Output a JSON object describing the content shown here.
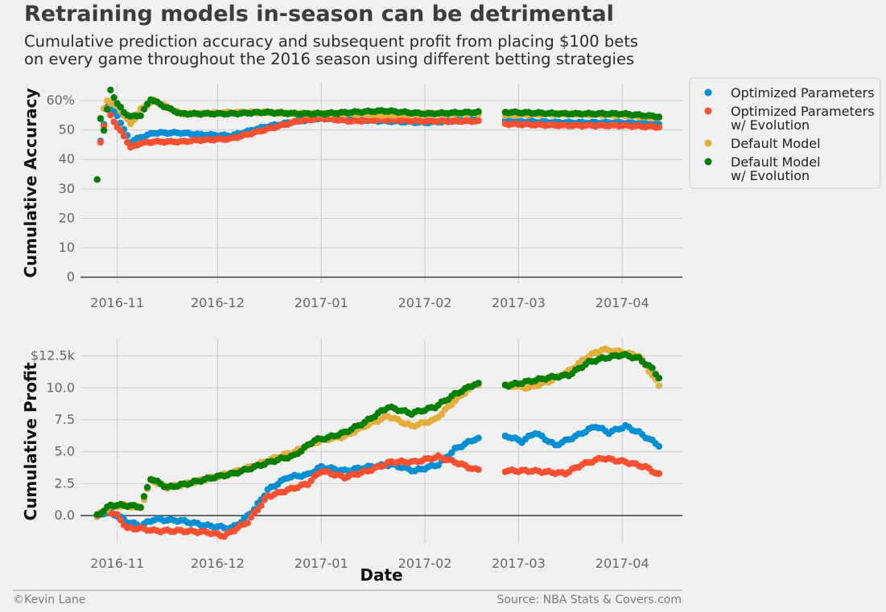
{
  "title": "Retraining models in-season can be detrimental",
  "subtitle": [
    "Cumulative prediction accuracy and subsequent profit from placing $100 bets",
    "on every game throughout the 2016 season using different betting strategies"
  ],
  "footer": {
    "credit": "©Kevin Lane",
    "source": "Source: NBA Stats & Covers.com"
  },
  "colors": {
    "optimized": "#008fd5",
    "optimized_evo": "#fc4f30",
    "default": "#e5ae38",
    "default_evo": "#008000"
  },
  "chart_data": [
    {
      "type": "scatter",
      "ylabel": "Cumulative Accuracy",
      "xlabel": "",
      "x_ticks": [
        "2016-11",
        "2016-12",
        "2017-01",
        "2017-02",
        "2017-03",
        "2017-04"
      ],
      "x_range": [
        "2016-10-21",
        "2017-04-19"
      ],
      "y_ticks": [
        "0",
        "10",
        "20",
        "30",
        "40",
        "50",
        "60%"
      ],
      "ylim": [
        -2,
        66
      ],
      "legend_position": "outside-right",
      "gap": [
        "2017-02-17",
        "2017-02-25"
      ],
      "series": [
        {
          "name": "Optimized Parameters",
          "color_key": "optimized",
          "anchors": [
            [
              "2016-10-27",
              46
            ],
            [
              "2016-10-29",
              58
            ],
            [
              "2016-11-01",
              55
            ],
            [
              "2016-11-03",
              50
            ],
            [
              "2016-11-05",
              46
            ],
            [
              "2016-11-08",
              47.5
            ],
            [
              "2016-11-12",
              49
            ],
            [
              "2016-11-20",
              49
            ],
            [
              "2016-11-25",
              48.5
            ],
            [
              "2016-12-05",
              48
            ],
            [
              "2016-12-15",
              51
            ],
            [
              "2016-12-25",
              53
            ],
            [
              "2017-01-01",
              54
            ],
            [
              "2017-01-10",
              53.5
            ],
            [
              "2017-01-20",
              53
            ],
            [
              "2017-02-01",
              52.5
            ],
            [
              "2017-02-16",
              53.5
            ],
            [
              "2017-02-26",
              53
            ],
            [
              "2017-03-15",
              52.5
            ],
            [
              "2017-04-01",
              52.5
            ],
            [
              "2017-04-12",
              52
            ]
          ]
        },
        {
          "name": "Optimized Parameters\nw/ Evolution",
          "color_key": "optimized_evo",
          "anchors": [
            [
              "2016-10-27",
              46
            ],
            [
              "2016-10-29",
              57
            ],
            [
              "2016-11-01",
              51
            ],
            [
              "2016-11-03",
              48
            ],
            [
              "2016-11-05",
              44
            ],
            [
              "2016-11-08",
              45.5
            ],
            [
              "2016-11-12",
              46
            ],
            [
              "2016-11-20",
              46
            ],
            [
              "2016-11-25",
              46.5
            ],
            [
              "2016-12-05",
              47
            ],
            [
              "2016-12-15",
              50
            ],
            [
              "2016-12-25",
              53
            ],
            [
              "2017-01-01",
              54
            ],
            [
              "2017-01-10",
              53
            ],
            [
              "2017-01-20",
              53.5
            ],
            [
              "2017-02-01",
              53
            ],
            [
              "2017-02-16",
              53
            ],
            [
              "2017-02-26",
              52
            ],
            [
              "2017-03-15",
              51.5
            ],
            [
              "2017-04-01",
              51.5
            ],
            [
              "2017-04-12",
              51
            ]
          ]
        },
        {
          "name": "Default Model",
          "color_key": "default",
          "anchors": [
            [
              "2016-10-27",
              54
            ],
            [
              "2016-10-29",
              60
            ],
            [
              "2016-11-01",
              58
            ],
            [
              "2016-11-03",
              55
            ],
            [
              "2016-11-05",
              52
            ],
            [
              "2016-11-08",
              57
            ],
            [
              "2016-11-12",
              60
            ],
            [
              "2016-11-20",
              55.5
            ],
            [
              "2016-11-25",
              55.5
            ],
            [
              "2016-12-05",
              56
            ],
            [
              "2016-12-15",
              56
            ],
            [
              "2016-12-25",
              55.5
            ],
            [
              "2017-01-01",
              55.5
            ],
            [
              "2017-01-10",
              55.5
            ],
            [
              "2017-01-20",
              55
            ],
            [
              "2017-02-01",
              55.5
            ],
            [
              "2017-02-16",
              55.5
            ],
            [
              "2017-02-26",
              55
            ],
            [
              "2017-03-15",
              55.5
            ],
            [
              "2017-04-01",
              55
            ],
            [
              "2017-04-12",
              54
            ]
          ]
        },
        {
          "name": "Default Model\nw/ Evolution",
          "color_key": "default_evo",
          "anchors": [
            [
              "2016-10-26",
              33
            ],
            [
              "2016-10-27",
              54
            ],
            [
              "2016-10-28",
              50
            ],
            [
              "2016-10-30",
              63.5
            ],
            [
              "2016-11-01",
              59
            ],
            [
              "2016-11-03",
              56
            ],
            [
              "2016-11-05",
              54.5
            ],
            [
              "2016-11-08",
              55
            ],
            [
              "2016-11-11",
              60.5
            ],
            [
              "2016-11-15",
              58
            ],
            [
              "2016-11-20",
              55.5
            ],
            [
              "2016-12-05",
              55.5
            ],
            [
              "2016-12-15",
              56
            ],
            [
              "2016-12-25",
              55.5
            ],
            [
              "2017-01-01",
              55.5
            ],
            [
              "2017-01-10",
              56
            ],
            [
              "2017-01-20",
              56.5
            ],
            [
              "2017-02-01",
              55.5
            ],
            [
              "2017-02-16",
              56
            ],
            [
              "2017-02-26",
              56
            ],
            [
              "2017-03-15",
              55.5
            ],
            [
              "2017-04-01",
              55.5
            ],
            [
              "2017-04-12",
              54.5
            ]
          ]
        }
      ]
    },
    {
      "type": "scatter",
      "ylabel": "Cumulative Profit",
      "xlabel": "Date",
      "x_ticks": [
        "2016-11",
        "2016-12",
        "2017-01",
        "2017-02",
        "2017-03",
        "2017-04"
      ],
      "x_range": [
        "2016-10-21",
        "2017-04-19"
      ],
      "y_ticks": [
        "0.0",
        "2.5",
        "5.0",
        "7.5",
        "10.0",
        "$12.5k"
      ],
      "ylim": [
        -2.2,
        13.8
      ],
      "gap": [
        "2017-02-17",
        "2017-02-25"
      ],
      "series": [
        {
          "name": "Optimized Parameters",
          "color_key": "optimized",
          "anchors": [
            [
              "2016-10-26",
              0
            ],
            [
              "2016-10-29",
              0.3
            ],
            [
              "2016-11-01",
              0
            ],
            [
              "2016-11-04",
              -0.5
            ],
            [
              "2016-11-08",
              -0.8
            ],
            [
              "2016-11-12",
              -0.3
            ],
            [
              "2016-11-20",
              -0.4
            ],
            [
              "2016-11-28",
              -0.8
            ],
            [
              "2016-12-05",
              -1
            ],
            [
              "2016-12-08",
              -0.5
            ],
            [
              "2016-12-12",
              0.5
            ],
            [
              "2016-12-16",
              2
            ],
            [
              "2016-12-22",
              3
            ],
            [
              "2016-12-28",
              3.2
            ],
            [
              "2017-01-01",
              3.8
            ],
            [
              "2017-01-08",
              3.5
            ],
            [
              "2017-01-15",
              3.8
            ],
            [
              "2017-01-22",
              4
            ],
            [
              "2017-01-29",
              3.5
            ],
            [
              "2017-02-05",
              4
            ],
            [
              "2017-02-10",
              5.2
            ],
            [
              "2017-02-16",
              6
            ],
            [
              "2017-02-26",
              6.2
            ],
            [
              "2017-03-02",
              5.8
            ],
            [
              "2017-03-06",
              6.5
            ],
            [
              "2017-03-12",
              5.5
            ],
            [
              "2017-03-18",
              6.2
            ],
            [
              "2017-03-24",
              7
            ],
            [
              "2017-03-28",
              6.5
            ],
            [
              "2017-04-02",
              7
            ],
            [
              "2017-04-06",
              6.5
            ],
            [
              "2017-04-12",
              5.5
            ]
          ]
        },
        {
          "name": "Optimized Parameters\nw/ Evolution",
          "color_key": "optimized_evo",
          "anchors": [
            [
              "2016-10-26",
              0
            ],
            [
              "2016-10-29",
              0.4
            ],
            [
              "2016-11-01",
              0
            ],
            [
              "2016-11-04",
              -1
            ],
            [
              "2016-11-08",
              -1
            ],
            [
              "2016-11-12",
              -1.2
            ],
            [
              "2016-11-20",
              -1.2
            ],
            [
              "2016-11-28",
              -1.3
            ],
            [
              "2016-12-03",
              -1.6
            ],
            [
              "2016-12-10",
              -0.5
            ],
            [
              "2016-12-16",
              1.5
            ],
            [
              "2016-12-22",
              2
            ],
            [
              "2016-12-28",
              2.5
            ],
            [
              "2017-01-01",
              3.5
            ],
            [
              "2017-01-08",
              3
            ],
            [
              "2017-01-15",
              3.5
            ],
            [
              "2017-01-22",
              4.2
            ],
            [
              "2017-01-29",
              4.2
            ],
            [
              "2017-02-05",
              4.6
            ],
            [
              "2017-02-10",
              4.2
            ],
            [
              "2017-02-16",
              3.6
            ],
            [
              "2017-02-26",
              3.5
            ],
            [
              "2017-03-05",
              3.5
            ],
            [
              "2017-03-15",
              3.3
            ],
            [
              "2017-03-20",
              4
            ],
            [
              "2017-03-26",
              4.5
            ],
            [
              "2017-04-02",
              4.2
            ],
            [
              "2017-04-08",
              3.8
            ],
            [
              "2017-04-12",
              3.2
            ]
          ]
        },
        {
          "name": "Default Model",
          "color_key": "default",
          "anchors": [
            [
              "2016-10-26",
              0
            ],
            [
              "2016-10-30",
              0.7
            ],
            [
              "2016-11-03",
              0.8
            ],
            [
              "2016-11-08",
              0.6
            ],
            [
              "2016-11-11",
              2.8
            ],
            [
              "2016-11-16",
              2.2
            ],
            [
              "2016-11-22",
              2.5
            ],
            [
              "2016-11-30",
              3
            ],
            [
              "2016-12-06",
              3.4
            ],
            [
              "2016-12-12",
              3.9
            ],
            [
              "2016-12-18",
              4.5
            ],
            [
              "2016-12-24",
              5
            ],
            [
              "2016-12-30",
              5.7
            ],
            [
              "2017-01-03",
              6
            ],
            [
              "2017-01-08",
              6.2
            ],
            [
              "2017-01-14",
              7
            ],
            [
              "2017-01-21",
              7.8
            ],
            [
              "2017-01-28",
              7
            ],
            [
              "2017-02-04",
              7.5
            ],
            [
              "2017-02-10",
              9
            ],
            [
              "2017-02-16",
              10.3
            ],
            [
              "2017-02-26",
              10.2
            ],
            [
              "2017-03-04",
              10
            ],
            [
              "2017-03-10",
              10.5
            ],
            [
              "2017-03-16",
              11.3
            ],
            [
              "2017-03-22",
              12.5
            ],
            [
              "2017-03-26",
              13
            ],
            [
              "2017-04-01",
              12.8
            ],
            [
              "2017-04-06",
              12.5
            ],
            [
              "2017-04-10",
              11
            ],
            [
              "2017-04-12",
              10.2
            ]
          ]
        },
        {
          "name": "Default Model\nw/ Evolution",
          "color_key": "default_evo",
          "anchors": [
            [
              "2016-10-26",
              0
            ],
            [
              "2016-10-30",
              0.8
            ],
            [
              "2016-11-03",
              0.8
            ],
            [
              "2016-11-08",
              0.7
            ],
            [
              "2016-11-11",
              2.9
            ],
            [
              "2016-11-16",
              2.2
            ],
            [
              "2016-11-22",
              2.5
            ],
            [
              "2016-11-30",
              3
            ],
            [
              "2016-12-06",
              3.3
            ],
            [
              "2016-12-12",
              3.8
            ],
            [
              "2016-12-18",
              4.3
            ],
            [
              "2016-12-24",
              4.7
            ],
            [
              "2016-12-30",
              5.9
            ],
            [
              "2017-01-03",
              6.1
            ],
            [
              "2017-01-08",
              6.5
            ],
            [
              "2017-01-14",
              7.3
            ],
            [
              "2017-01-21",
              8.5
            ],
            [
              "2017-01-28",
              8
            ],
            [
              "2017-02-04",
              8.5
            ],
            [
              "2017-02-10",
              9.5
            ],
            [
              "2017-02-16",
              10.3
            ],
            [
              "2017-02-26",
              10.2
            ],
            [
              "2017-03-04",
              10.5
            ],
            [
              "2017-03-10",
              10.8
            ],
            [
              "2017-03-16",
              11
            ],
            [
              "2017-03-22",
              12
            ],
            [
              "2017-03-26",
              12.3
            ],
            [
              "2017-04-01",
              12.6
            ],
            [
              "2017-04-06",
              12.3
            ],
            [
              "2017-04-10",
              11.5
            ],
            [
              "2017-04-12",
              10.8
            ]
          ]
        }
      ]
    }
  ]
}
